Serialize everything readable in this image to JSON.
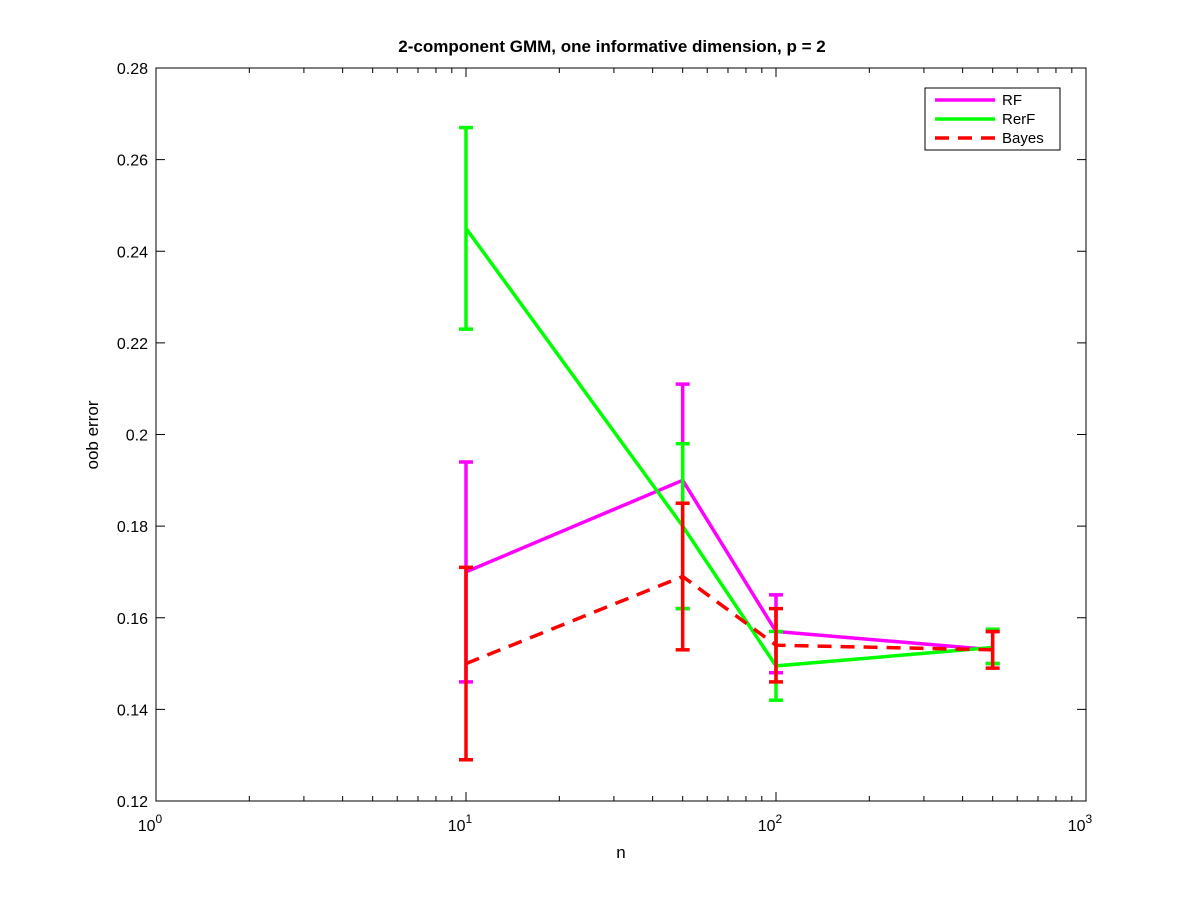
{
  "chart_data": {
    "type": "line",
    "title": "2-component GMM, one informative dimension, p = 2",
    "xlabel": "n",
    "ylabel": "oob error",
    "xscale": "log",
    "xlim": [
      1,
      1000
    ],
    "ylim": [
      0.12,
      0.28
    ],
    "xticks": [
      {
        "value": 1,
        "base": "10",
        "exp": "0"
      },
      {
        "value": 10,
        "base": "10",
        "exp": "1"
      },
      {
        "value": 100,
        "base": "10",
        "exp": "2"
      },
      {
        "value": 1000,
        "base": "10",
        "exp": "3"
      }
    ],
    "yticks": [
      {
        "value": 0.12,
        "label": "0.12"
      },
      {
        "value": 0.14,
        "label": "0.14"
      },
      {
        "value": 0.16,
        "label": "0.16"
      },
      {
        "value": 0.18,
        "label": "0.18"
      },
      {
        "value": 0.2,
        "label": "0.2"
      },
      {
        "value": 0.22,
        "label": "0.22"
      },
      {
        "value": 0.24,
        "label": "0.24"
      },
      {
        "value": 0.26,
        "label": "0.26"
      },
      {
        "value": 0.28,
        "label": "0.28"
      }
    ],
    "grid": false,
    "legend_position": "top-right",
    "series": [
      {
        "name": "RF",
        "color": "#ff00ff",
        "dash": false,
        "x": [
          10,
          50,
          100,
          500
        ],
        "y": [
          0.17,
          0.19,
          0.157,
          0.153
        ],
        "err_low": [
          0.146,
          0.162,
          0.148,
          0.15
        ],
        "err_high": [
          0.194,
          0.211,
          0.165,
          0.157
        ]
      },
      {
        "name": "RerF",
        "color": "#00ff00",
        "dash": false,
        "x": [
          10,
          50,
          100,
          500
        ],
        "y": [
          0.245,
          0.18,
          0.1495,
          0.1535
        ],
        "err_low": [
          0.223,
          0.162,
          0.142,
          0.15
        ],
        "err_high": [
          0.267,
          0.198,
          0.157,
          0.1575
        ]
      },
      {
        "name": "Bayes",
        "color": "#ff0000",
        "dash": true,
        "x": [
          10,
          50,
          100,
          500
        ],
        "y": [
          0.15,
          0.169,
          0.154,
          0.153
        ],
        "err_low": [
          0.129,
          0.153,
          0.146,
          0.149
        ],
        "err_high": [
          0.171,
          0.185,
          0.162,
          0.157
        ]
      }
    ]
  }
}
